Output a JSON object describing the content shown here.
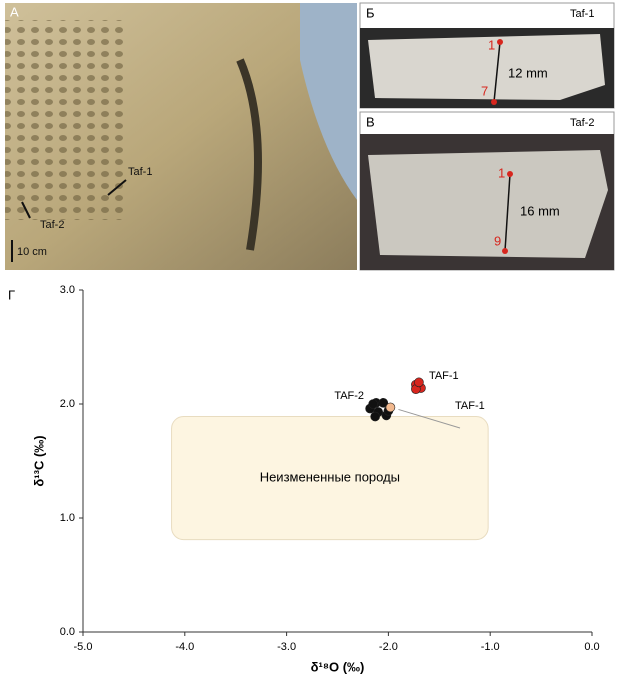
{
  "photos": {
    "a": {
      "letter": "А",
      "label1": "Taf-1",
      "label2": "Taf-2",
      "scale": "10 cm"
    },
    "b": {
      "letter": "Б",
      "sample": "Taf-1",
      "top": "1",
      "bottom": "7",
      "size": "12 mm"
    },
    "v": {
      "letter": "В",
      "sample": "Taf-2",
      "top": "1",
      "bottom": "9",
      "size": "16 mm"
    }
  },
  "chart_data": {
    "type": "scatter",
    "letter": "Г",
    "xlabel": "δ¹⁸O (‰)",
    "ylabel": "δ¹³C (‰)",
    "xlim": [
      -5,
      0
    ],
    "ylim": [
      0,
      3
    ],
    "xticks": [
      {
        "value": -5,
        "label": "-5.0"
      },
      {
        "value": -4,
        "label": "-4.0"
      },
      {
        "value": -3,
        "label": "-3.0"
      },
      {
        "value": -2,
        "label": "-2.0"
      },
      {
        "value": -1,
        "label": "-1.0"
      },
      {
        "value": 0,
        "label": "0.0"
      }
    ],
    "yticks": [
      {
        "value": 0,
        "label": "0.0"
      },
      {
        "value": 1,
        "label": "1.0"
      },
      {
        "value": 2,
        "label": "2.0"
      },
      {
        "value": 3,
        "label": "3.0"
      }
    ],
    "region": {
      "label": "Неизмененные породы",
      "x": [
        -4.13,
        -1.02
      ],
      "y": [
        0.81,
        1.89
      ],
      "color": "#fdf5e1"
    },
    "series": [
      {
        "name": "TAF-1",
        "color": "#d7261e",
        "x": [
          -1.73,
          -1.68,
          -1.73,
          -1.7
        ],
        "values": [
          2.17,
          2.14,
          2.13,
          2.19
        ]
      },
      {
        "name": "TAF-2",
        "color": "#111111",
        "x": [
          -2.18,
          -2.12,
          -2.05,
          -2.1,
          -2.02,
          -2.13,
          -2.0,
          -2.15
        ],
        "values": [
          1.96,
          2.01,
          2.01,
          1.93,
          1.9,
          1.89,
          1.94,
          2.0
        ]
      },
      {
        "name": "TAF-1",
        "color": "#f2b98f",
        "x": [
          -1.98
        ],
        "values": [
          1.97
        ]
      }
    ]
  }
}
